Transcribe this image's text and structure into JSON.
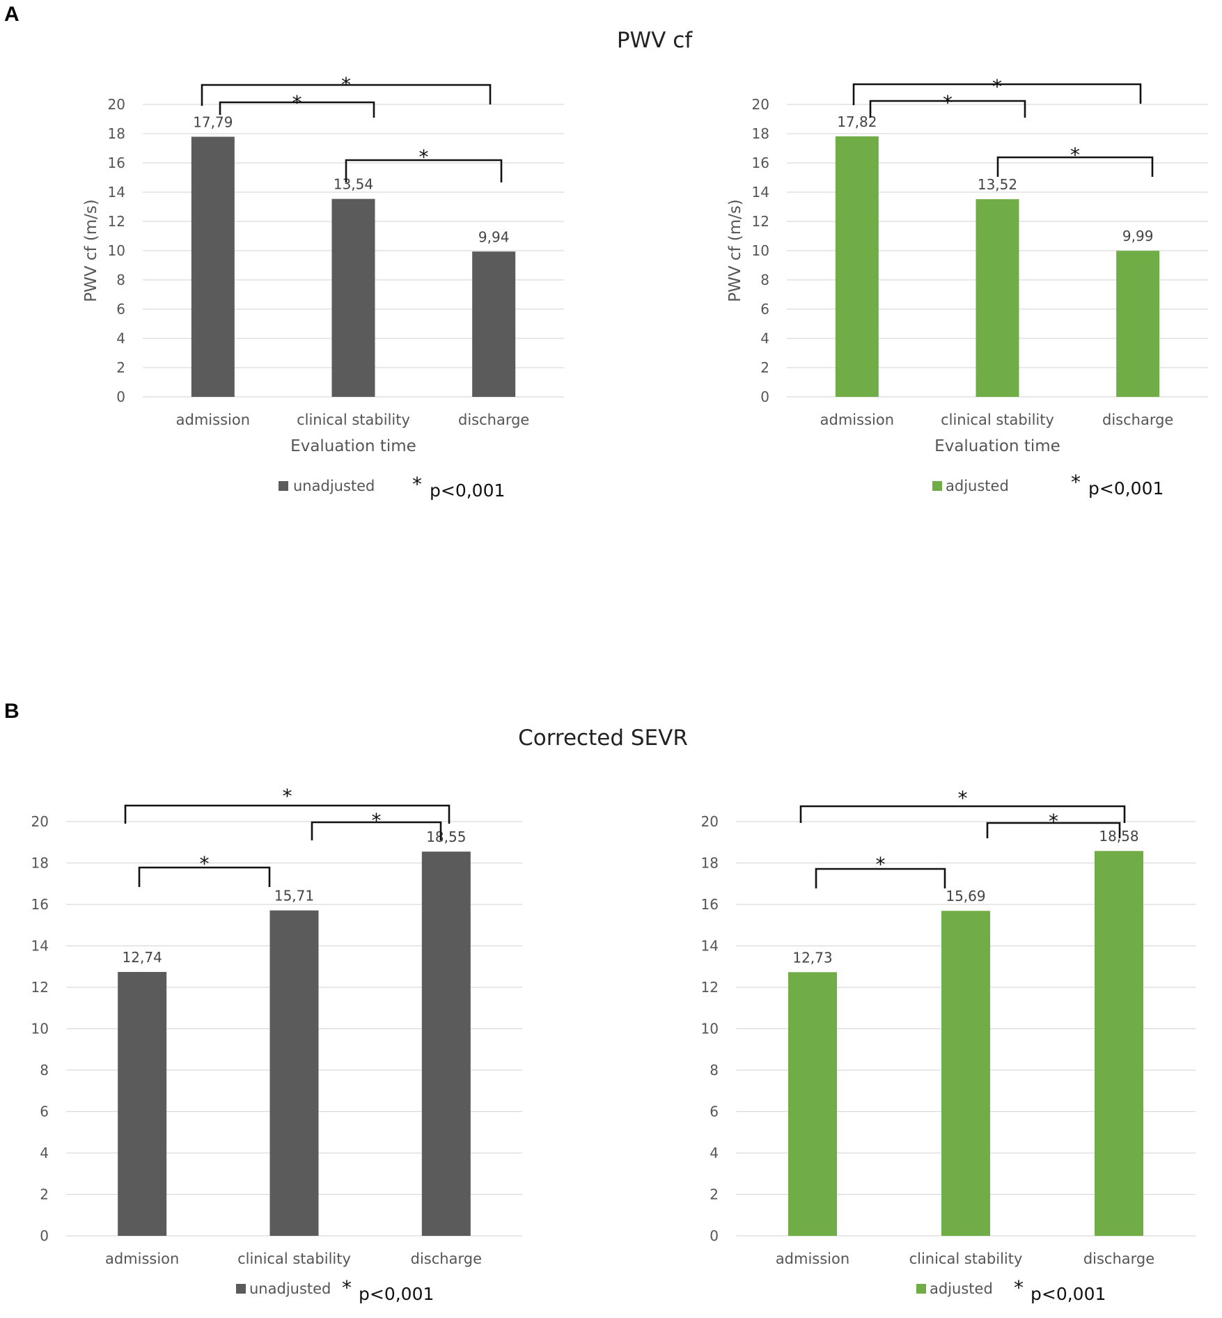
{
  "panels": [
    {
      "letter": "A",
      "title": "PWV cf"
    },
    {
      "letter": "B",
      "title": "Corrected SEVR"
    }
  ],
  "significance_symbol": "*",
  "chart_data": [
    {
      "type": "bar",
      "panel": "A",
      "categories": [
        "admission",
        "clinical stability",
        "discharge"
      ],
      "series": [
        {
          "name": "unadjusted",
          "values": [
            17.79,
            13.54,
            9.94
          ],
          "color": "#5b5b5b"
        }
      ],
      "data_labels": [
        "17,79",
        "13,54",
        "9,94"
      ],
      "ylim": [
        0,
        20
      ],
      "yticks": [
        0,
        2,
        4,
        6,
        8,
        10,
        12,
        14,
        16,
        18,
        20
      ],
      "ylabel": "PWV cf (m/s)",
      "xlabel": "Evaluation time",
      "legend": "unadjusted",
      "significance_note": "p<0,001",
      "comparisons": [
        [
          0,
          2
        ],
        [
          0,
          1
        ],
        [
          1,
          2
        ]
      ]
    },
    {
      "type": "bar",
      "panel": "A",
      "categories": [
        "admission",
        "clinical stability",
        "discharge"
      ],
      "series": [
        {
          "name": "adjusted",
          "values": [
            17.82,
            13.52,
            9.99
          ],
          "color": "#70ad47"
        }
      ],
      "data_labels": [
        "17,82",
        "13,52",
        "9,99"
      ],
      "ylim": [
        0,
        20
      ],
      "yticks": [
        0,
        2,
        4,
        6,
        8,
        10,
        12,
        14,
        16,
        18,
        20
      ],
      "ylabel": "PWV cf (m/s)",
      "xlabel": "Evaluation time",
      "legend": "adjusted",
      "significance_note": "p<0,001",
      "comparisons": [
        [
          0,
          2
        ],
        [
          0,
          1
        ],
        [
          1,
          2
        ]
      ]
    },
    {
      "type": "bar",
      "panel": "B",
      "categories": [
        "admission",
        "clinical stability",
        "discharge"
      ],
      "series": [
        {
          "name": "unadjusted",
          "values": [
            12.74,
            15.71,
            18.55
          ],
          "color": "#5b5b5b"
        }
      ],
      "data_labels": [
        "12,74",
        "15,71",
        "18,55"
      ],
      "ylim": [
        0,
        20
      ],
      "yticks": [
        0,
        2,
        4,
        6,
        8,
        10,
        12,
        14,
        16,
        18,
        20
      ],
      "ylabel": "",
      "xlabel": "",
      "legend": "unadjusted",
      "significance_note": "p<0,001",
      "comparisons": [
        [
          0,
          2
        ],
        [
          1,
          2
        ],
        [
          0,
          1
        ]
      ]
    },
    {
      "type": "bar",
      "panel": "B",
      "categories": [
        "admission",
        "clinical stability",
        "discharge"
      ],
      "series": [
        {
          "name": "adjusted",
          "values": [
            12.73,
            15.69,
            18.58
          ],
          "color": "#70ad47"
        }
      ],
      "data_labels": [
        "12,73",
        "15,69",
        "18,58"
      ],
      "ylim": [
        0,
        20
      ],
      "yticks": [
        0,
        2,
        4,
        6,
        8,
        10,
        12,
        14,
        16,
        18,
        20
      ],
      "ylabel": "",
      "xlabel": "",
      "legend": "adjusted",
      "significance_note": "p<0,001",
      "comparisons": [
        [
          0,
          2
        ],
        [
          1,
          2
        ],
        [
          0,
          1
        ]
      ]
    }
  ]
}
